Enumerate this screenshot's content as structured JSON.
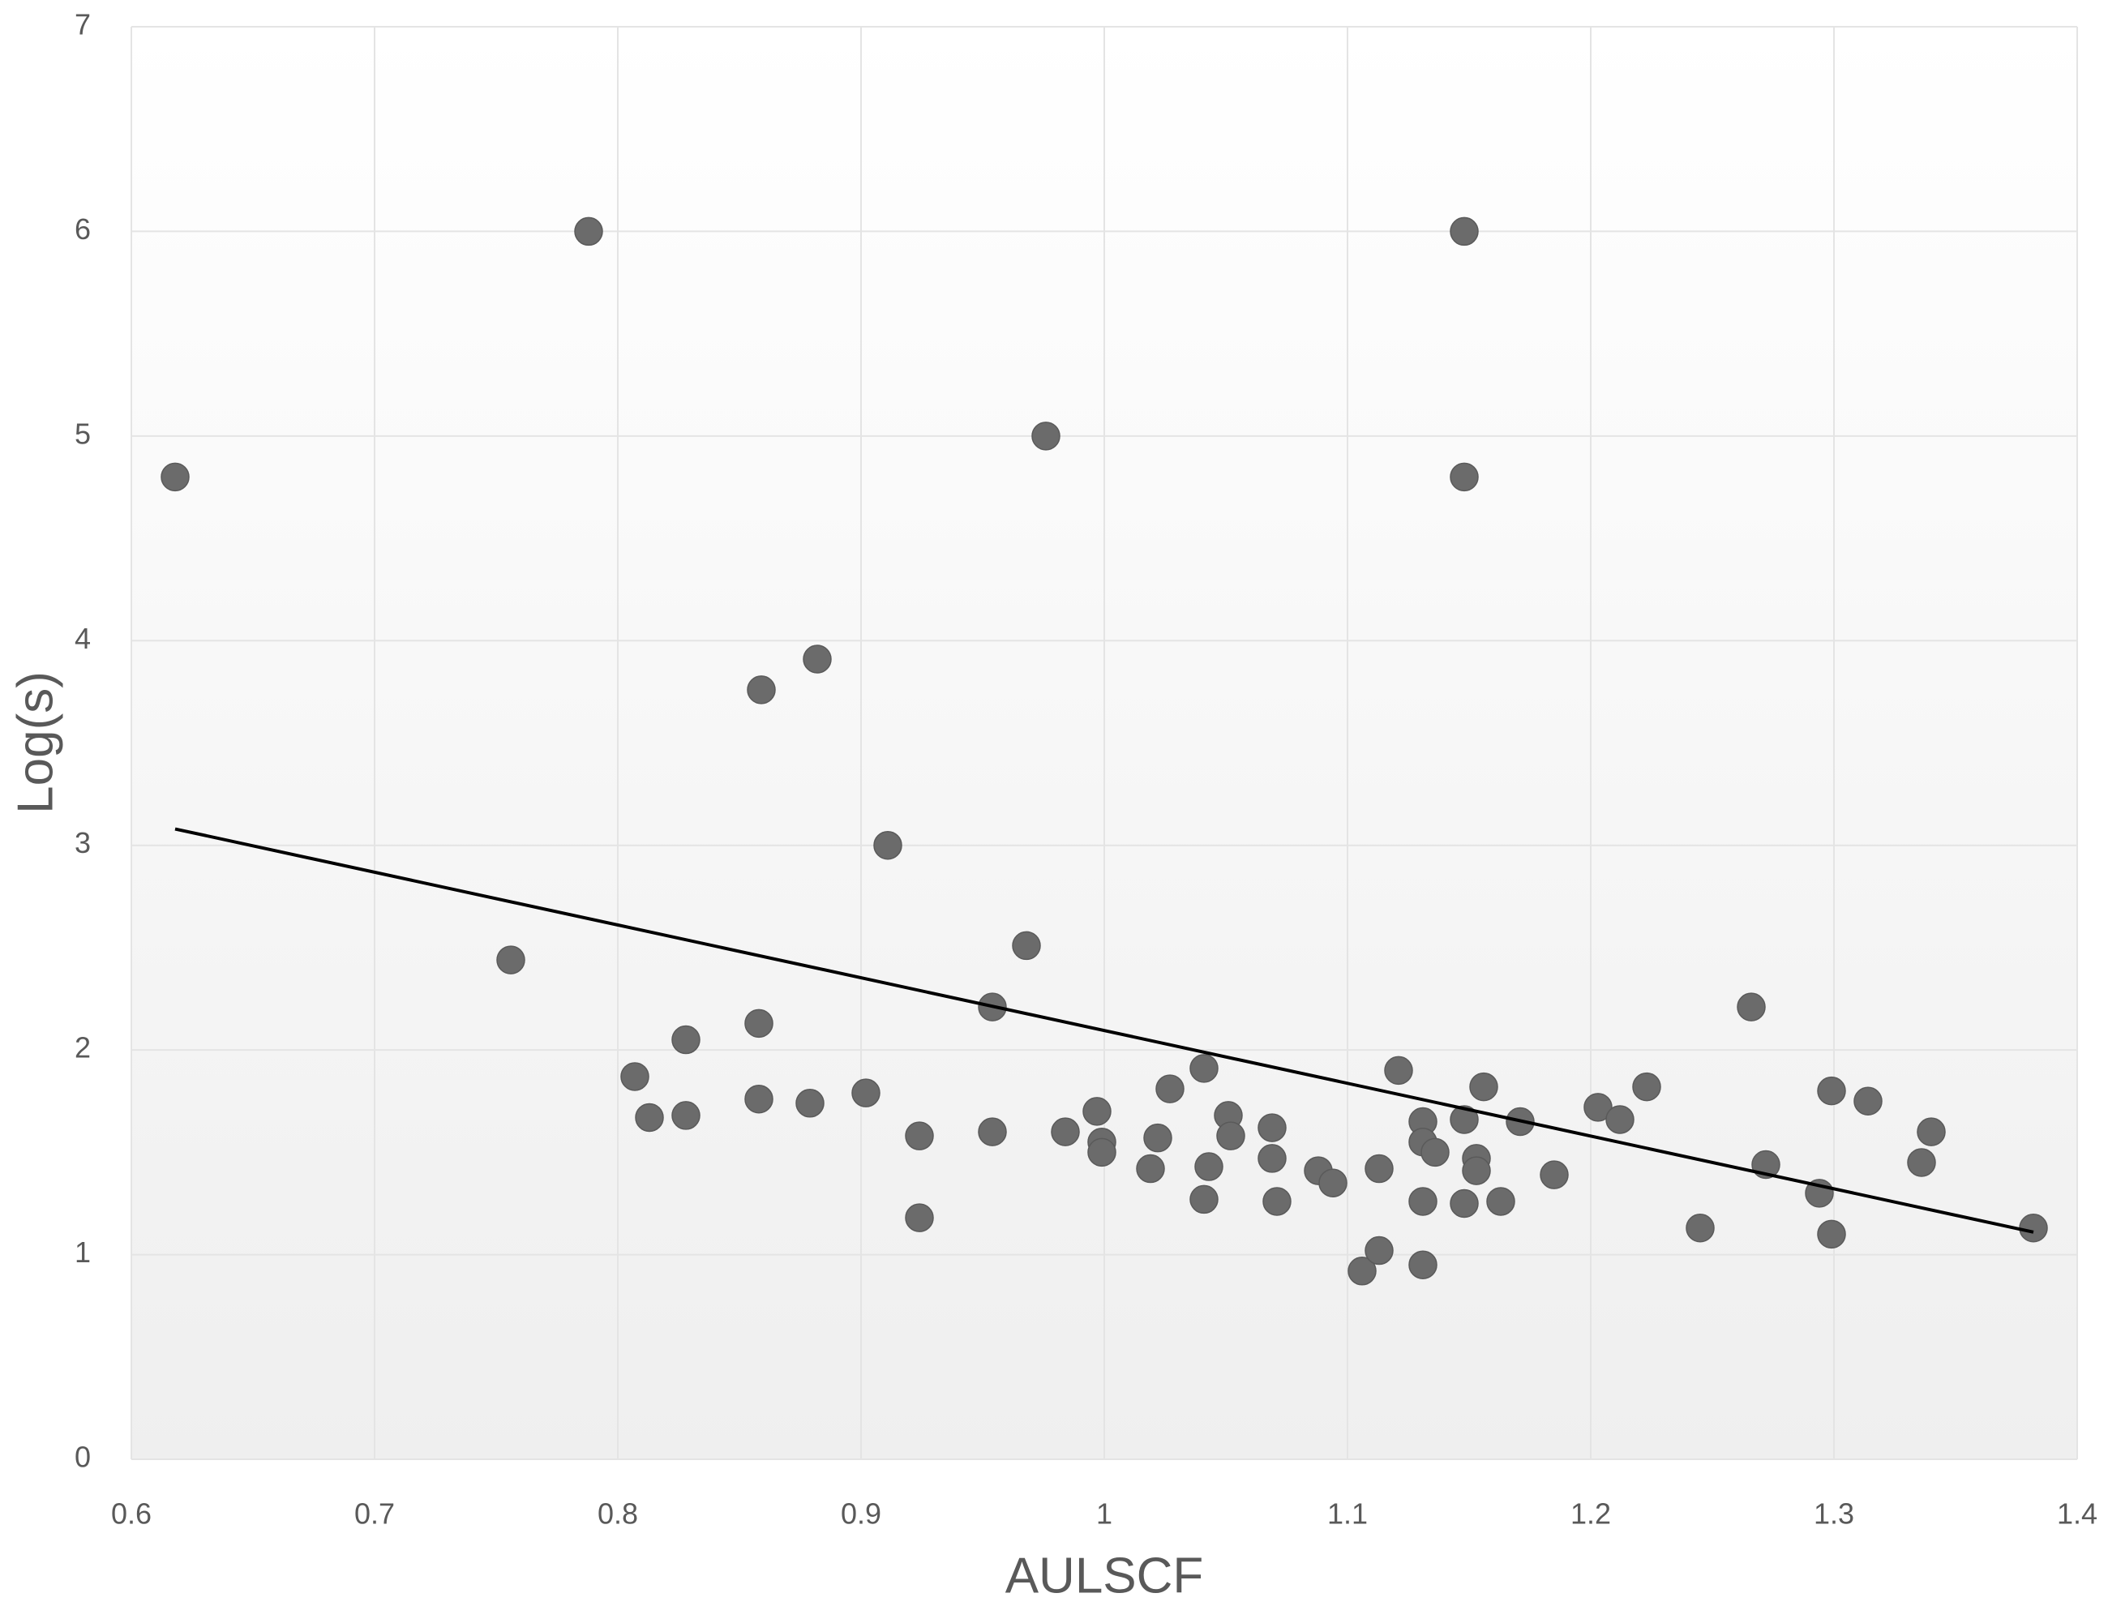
{
  "chart_data": {
    "type": "scatter",
    "xlabel": "AULSCF",
    "ylabel": "Log(s)",
    "xlim": [
      0.6,
      1.4
    ],
    "xticks": [
      0.6,
      0.7,
      0.8,
      0.9,
      1,
      1.1,
      1.2,
      1.3,
      1.4
    ],
    "ylim": [
      0,
      7
    ],
    "yticks": [
      0,
      1,
      2,
      3,
      4,
      5,
      6,
      7
    ],
    "grid": true,
    "series": [
      {
        "color": "#6b6b6b",
        "x": [
          0.618,
          0.788,
          0.976,
          1.148,
          1.148,
          0.859,
          0.882,
          0.911,
          0.756,
          0.968,
          0.954,
          1.266,
          0.858,
          0.828,
          0.807,
          0.813,
          0.828,
          0.858,
          0.879,
          0.902,
          0.924,
          0.924,
          0.954,
          0.984,
          0.997,
          0.999,
          0.999,
          1.019,
          1.022,
          1.027,
          1.041,
          1.041,
          1.043,
          1.051,
          1.052,
          1.069,
          1.069,
          1.071,
          1.088,
          1.094,
          1.106,
          1.113,
          1.113,
          1.121,
          1.131,
          1.131,
          1.131,
          1.131,
          1.136,
          1.148,
          1.148,
          1.153,
          1.153,
          1.156,
          1.163,
          1.171,
          1.185,
          1.203,
          1.212,
          1.223,
          1.245,
          1.272,
          1.294,
          1.299,
          1.299,
          1.314,
          1.336,
          1.34,
          1.382
        ],
        "values": [
          4.8,
          6.0,
          5.0,
          6.0,
          4.8,
          3.76,
          3.91,
          3.0,
          2.44,
          2.51,
          2.21,
          2.21,
          2.13,
          2.05,
          1.87,
          1.67,
          1.68,
          1.76,
          1.74,
          1.79,
          1.58,
          1.18,
          1.6,
          1.6,
          1.7,
          1.55,
          1.5,
          1.42,
          1.57,
          1.81,
          1.91,
          1.27,
          1.43,
          1.68,
          1.58,
          1.62,
          1.47,
          1.26,
          1.41,
          1.35,
          0.92,
          1.02,
          1.42,
          1.9,
          1.65,
          1.55,
          1.26,
          0.95,
          1.5,
          1.66,
          1.25,
          1.47,
          1.41,
          1.82,
          1.26,
          1.65,
          1.39,
          1.72,
          1.66,
          1.82,
          1.13,
          1.44,
          1.3,
          1.8,
          1.1,
          1.75,
          1.45,
          1.6,
          1.13
        ]
      }
    ],
    "trendline": {
      "color": "#000000",
      "x": [
        0.618,
        1.382
      ],
      "values": [
        3.08,
        1.11
      ]
    }
  }
}
